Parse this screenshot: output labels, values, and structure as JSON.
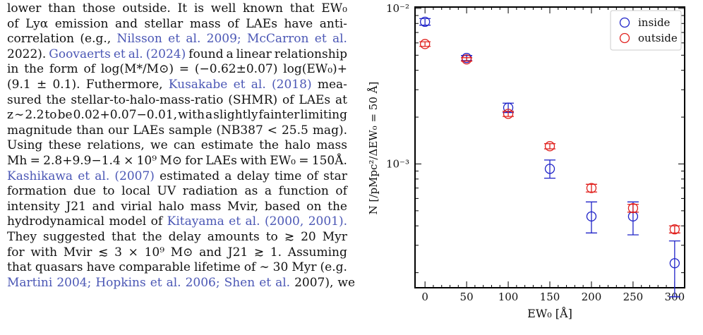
{
  "paragraph": {
    "lines": [
      "lower than those outside. It is well known that EW₀",
      "of Lyα emission and stellar mass of LAEs have anti-",
      "correlation (e.g., Nilsson et al. 2009; McCarron et al.",
      "2022). Goovaerts et al. (2024) found a linear relationship",
      "in the form of log(M*/M⊙) = (−0.62±0.07) log(EW₀)+",
      "(9.1 ± 0.1). Futhermore, Kusakabe et al. (2018) mea-",
      "sured the stellar-to-halo-mass-ratio (SHMR) of LAEs at",
      "z ∼ 2.2 to be 0.02+0.07−0.01, with a slightly fainter limiting",
      "magnitude than our LAEs sample (NB387 < 25.5 mag).",
      "Using these relations, we can estimate the halo mass",
      "Mh = 2.8+9.9−1.4 × 10⁹ M⊙ for LAEs with EW₀ = 150Å.",
      "Kashikawa et al. (2007) estimated a delay time of star",
      "formation due to local UV radiation as a function of",
      "intensity J21 and virial halo mass Mvir, based on the",
      "hydrodynamical model of Kitayama et al. (2000, 2001).",
      "They suggested that the delay amounts to ≳ 20 Myr",
      "for with Mvir ≲ 3 × 10⁹ M⊙ and J21 ≳ 1. Assuming",
      "that quasars have comparable lifetime of ∼ 30 Myr (e.g.",
      "Martini 2004; Hopkins et al. 2006; Shen et al. 2007), we"
    ],
    "citation_color": "#4b57b5"
  },
  "chart_data": {
    "type": "scatter",
    "xlabel": "EW₀ [Å]",
    "ylabel": "N [/pMpc²/ΔEW₀ = 50 Å]",
    "x_ticks": [
      "0",
      "50",
      "100",
      "150",
      "200",
      "250",
      "300"
    ],
    "y_ticks": [
      "10⁻²",
      "10⁻³"
    ],
    "xlim": [
      -12,
      312
    ],
    "ylim": [
      0.00016,
      0.0102
    ],
    "y_scale": "log",
    "grid": false,
    "legend_position": "top-right",
    "series": [
      {
        "name": "inside",
        "color": "#1f23c8",
        "x": [
          0,
          50,
          100,
          150,
          200,
          250,
          300
        ],
        "y": [
          0.0082,
          0.0048,
          0.0023,
          0.00093,
          0.00046,
          0.00046,
          0.00023
        ],
        "y_err_low": [
          0.0004,
          0.00018,
          0.00016,
          0.00012,
          0.0001,
          0.00011,
          9e-05
        ],
        "y_err_high": [
          0.0004,
          0.00018,
          0.00016,
          0.00013,
          0.00011,
          0.00011,
          9e-05
        ]
      },
      {
        "name": "outside",
        "color": "#e0201d",
        "x": [
          0,
          50,
          100,
          150,
          200,
          250,
          300
        ],
        "y": [
          0.0059,
          0.0047,
          0.0021,
          0.0013,
          0.0007,
          0.00052,
          0.00038
        ],
        "y_err_low": [
          0.0002,
          0.00012,
          8e-05,
          5e-05,
          4e-05,
          3e-05,
          2e-05
        ],
        "y_err_high": [
          0.0002,
          0.00012,
          8e-05,
          5e-05,
          4e-05,
          3e-05,
          2e-05
        ]
      }
    ]
  }
}
